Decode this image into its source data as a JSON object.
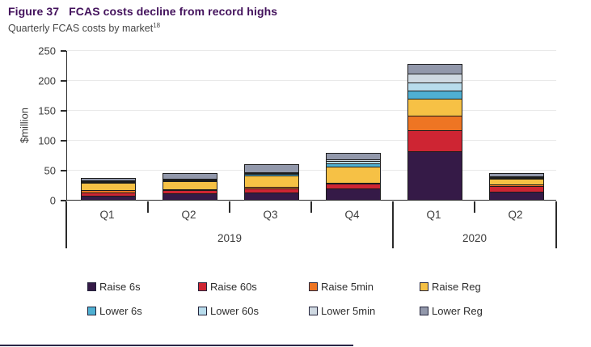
{
  "figure": {
    "label": "Figure 37",
    "title": "FCAS costs decline from record highs",
    "subtitle": "Quarterly FCAS costs by market",
    "subtitle_superscript": "18",
    "title_color": "#43125c"
  },
  "chart_data": {
    "type": "bar",
    "stacked": true,
    "title": "Quarterly FCAS costs by market",
    "xlabel": "",
    "ylabel": "$million",
    "ylim": [
      0,
      250
    ],
    "yticks": [
      0,
      50,
      100,
      150,
      200,
      250
    ],
    "grid": "horizontal",
    "legend_position": "bottom",
    "categories": [
      "Q1",
      "Q2",
      "Q3",
      "Q4",
      "Q1",
      "Q2"
    ],
    "category_years": [
      "2019",
      "2019",
      "2019",
      "2019",
      "2020",
      "2020"
    ],
    "group_labels": [
      {
        "label": "2019",
        "span": [
          0,
          3
        ]
      },
      {
        "label": "2020",
        "span": [
          4,
          5
        ]
      }
    ],
    "series": [
      {
        "name": "Raise 6s",
        "color": "#351a47",
        "values": [
          8,
          11,
          13,
          19,
          81,
          15
        ]
      },
      {
        "name": "Raise 60s",
        "color": "#ce2533",
        "values": [
          5,
          5.5,
          6,
          8,
          36,
          10
        ]
      },
      {
        "name": "Raise 5min",
        "color": "#ee7523",
        "values": [
          5.5,
          2.5,
          3,
          2,
          25,
          1.5
        ]
      },
      {
        "name": "Raise Reg",
        "color": "#f6c145",
        "values": [
          13,
          14,
          20,
          28,
          28,
          10.5
        ]
      },
      {
        "name": "Lower 6s",
        "color": "#4fb0d2",
        "values": [
          0.5,
          1,
          2,
          5.5,
          13,
          1
        ]
      },
      {
        "name": "Lower 60s",
        "color": "#b8dcec",
        "values": [
          0.5,
          1,
          1.5,
          3.5,
          14,
          1
        ]
      },
      {
        "name": "Lower 5min",
        "color": "#cfd9e2",
        "values": [
          0.5,
          1,
          1.5,
          3,
          15,
          1
        ]
      },
      {
        "name": "Lower Reg",
        "color": "#9298ab",
        "values": [
          3.5,
          8,
          13,
          10,
          15,
          5
        ]
      }
    ],
    "totals_approx": [
      36.5,
      44,
      60,
      79,
      227,
      45
    ],
    "legend_rows": [
      [
        "Raise 6s",
        "Raise 60s",
        "Raise 5min",
        "Raise Reg"
      ],
      [
        "Lower 6s",
        "Lower 60s",
        "Lower 5min",
        "Lower Reg"
      ]
    ]
  }
}
